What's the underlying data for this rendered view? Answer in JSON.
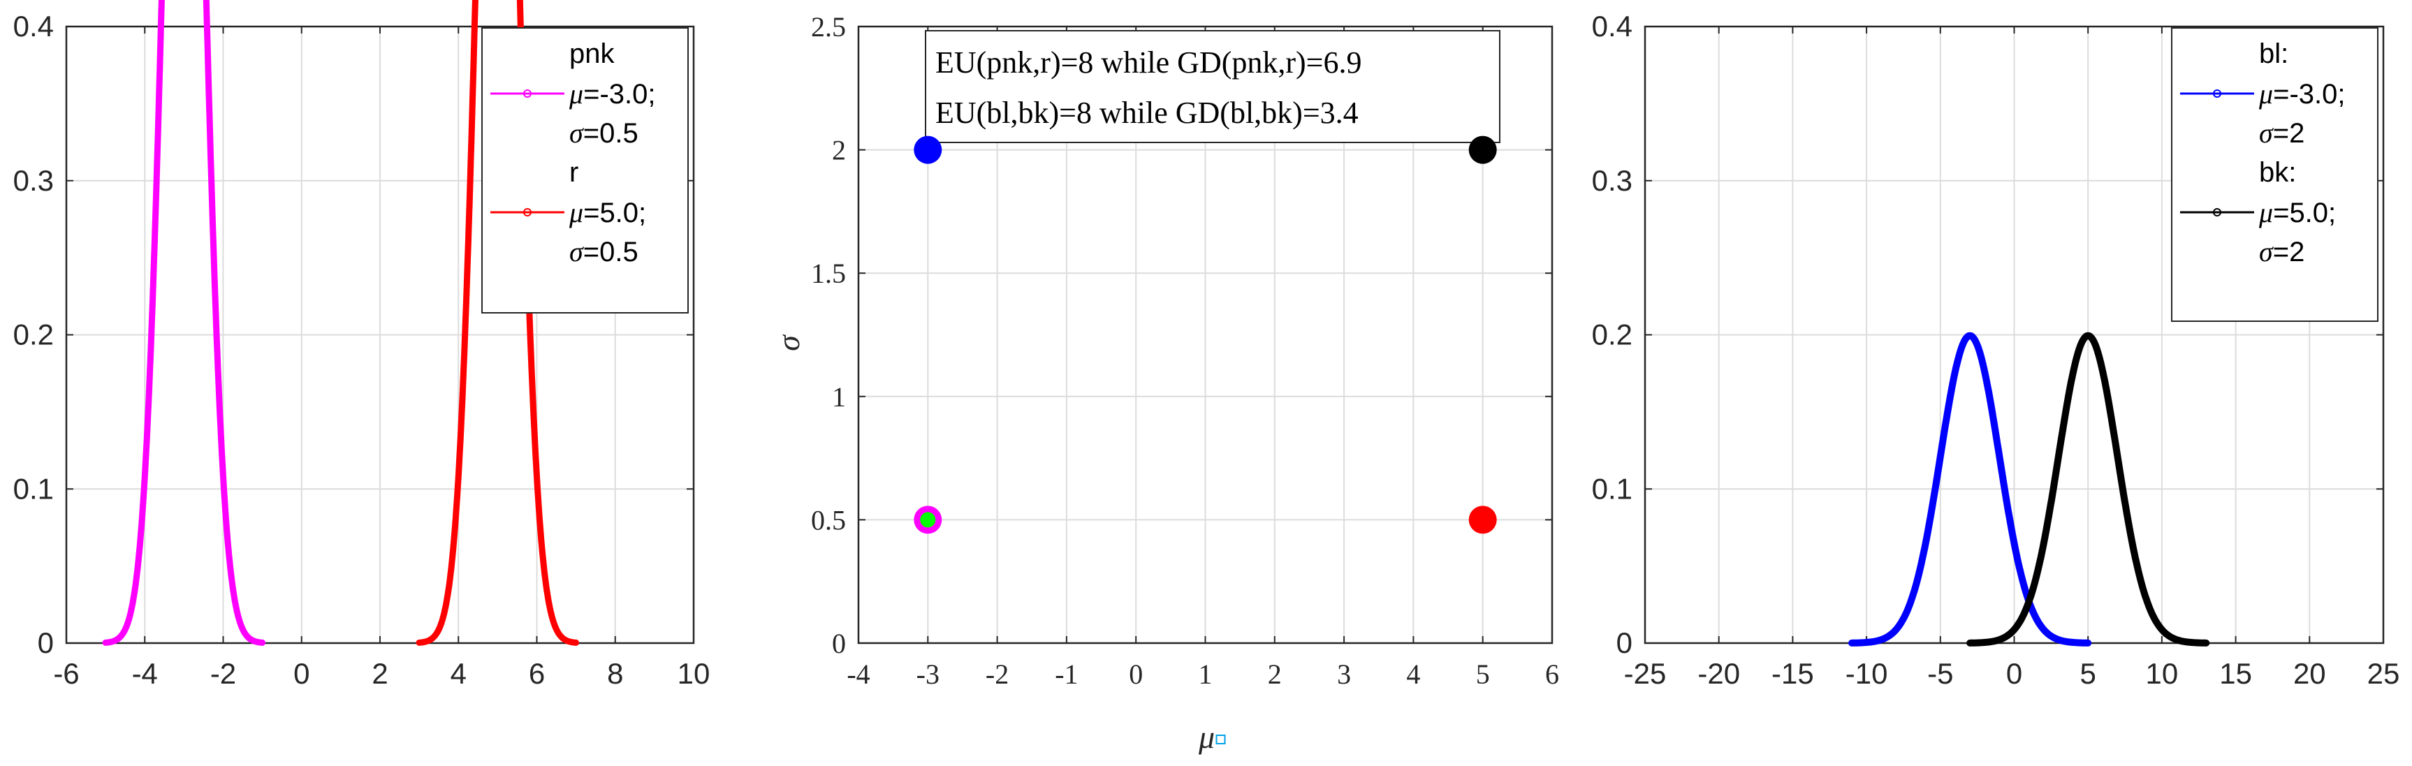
{
  "chart_data": [
    {
      "type": "line",
      "title": "",
      "xlabel": "",
      "ylabel": "",
      "xlim": [
        -6,
        10
      ],
      "ylim": [
        0,
        0.4
      ],
      "xticks": [
        "-6",
        "-4",
        "-2",
        "0",
        "2",
        "4",
        "6",
        "8",
        "10"
      ],
      "yticks": [
        "0",
        "0.1",
        "0.2",
        "0.3",
        "0.4"
      ],
      "grid": true,
      "legend_position": "top-right",
      "series": [
        {
          "name": "pnk",
          "mu": -3.0,
          "sigma": 0.5,
          "color": "#ff00ff",
          "legend_lines": [
            "pnk",
            "μ=-3.0;",
            "σ=0.5"
          ]
        },
        {
          "name": "r",
          "mu": 5.0,
          "sigma": 0.5,
          "color": "#ff0000",
          "legend_lines": [
            "r",
            "μ=5.0;",
            "σ=0.5"
          ]
        }
      ]
    },
    {
      "type": "scatter",
      "title": "",
      "xlabel": "μ",
      "ylabel": "σ",
      "xlim": [
        -4,
        6
      ],
      "ylim": [
        0,
        2.5
      ],
      "xticks": [
        "-4",
        "-3",
        "-2",
        "-1",
        "0",
        "1",
        "2",
        "3",
        "4",
        "5",
        "6"
      ],
      "yticks": [
        "0",
        "0.5",
        "1",
        "1.5",
        "2",
        "2.5"
      ],
      "grid": true,
      "annotations": [
        "EU(pnk,r)=8 while GD(pnk,r)=6.9",
        "EU(bl,bk)=8 while GD(bl,bk)=3.4"
      ],
      "points": [
        {
          "x": -3,
          "y": 2,
          "color": "#0000ff"
        },
        {
          "x": 5,
          "y": 2,
          "color": "#000000"
        },
        {
          "x": -3,
          "y": 0.5,
          "color": "#ff00ff",
          "inner": "#00ff00"
        },
        {
          "x": 5,
          "y": 0.5,
          "color": "#ff0000"
        }
      ]
    },
    {
      "type": "line",
      "title": "",
      "xlabel": "",
      "ylabel": "",
      "xlim": [
        -25,
        25
      ],
      "ylim": [
        0,
        0.4
      ],
      "xticks": [
        "-25",
        "-20",
        "-15",
        "-10",
        "-5",
        "0",
        "5",
        "10",
        "15",
        "20",
        "25"
      ],
      "yticks": [
        "0",
        "0.1",
        "0.2",
        "0.3",
        "0.4"
      ],
      "grid": true,
      "legend_position": "top-right",
      "series": [
        {
          "name": "bl",
          "mu": -3.0,
          "sigma": 2,
          "color": "#0000ff",
          "legend_lines": [
            "bl:",
            "μ=-3.0;",
            "σ=2"
          ]
        },
        {
          "name": "bk",
          "mu": 5.0,
          "sigma": 2,
          "color": "#000000",
          "legend_lines": [
            "bk:",
            "μ=5.0;",
            "σ=2"
          ]
        }
      ]
    }
  ]
}
